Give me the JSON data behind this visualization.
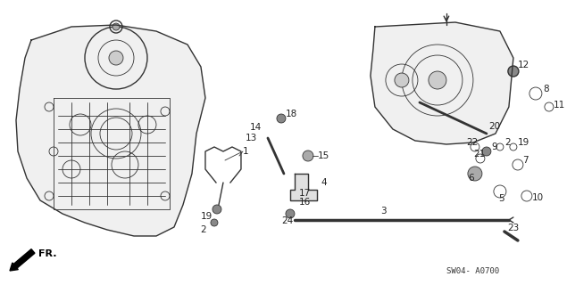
{
  "title": "",
  "bg_color": "#ffffff",
  "diagram_code": "SW04- A0700",
  "fr_text": "FR.",
  "part_numbers": [
    1,
    2,
    3,
    4,
    5,
    6,
    7,
    8,
    9,
    10,
    11,
    12,
    13,
    14,
    15,
    16,
    17,
    18,
    19,
    20,
    21,
    22,
    23,
    24
  ],
  "figsize": [
    6.35,
    3.2
  ],
  "dpi": 100,
  "line_color": "#333333",
  "label_color": "#222222",
  "label_fontsize": 7.5
}
